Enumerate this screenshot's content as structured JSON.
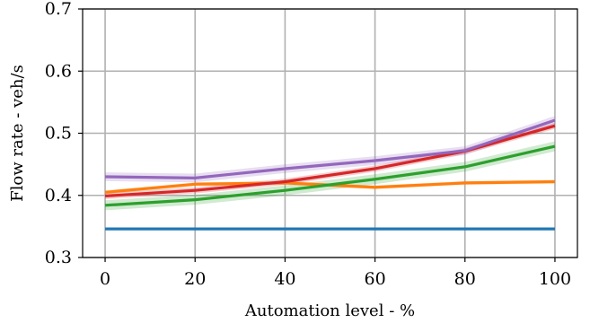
{
  "chart_data": {
    "type": "line",
    "xlabel": "Automation level - %",
    "ylabel": "Flow rate - veh/s",
    "xlim": [
      -5,
      105
    ],
    "ylim": [
      0.3,
      0.7
    ],
    "xticks": [
      0,
      20,
      40,
      60,
      80,
      100
    ],
    "yticks": [
      0.3,
      0.4,
      0.5,
      0.6,
      0.7
    ],
    "xtick_labels": [
      "0",
      "20",
      "40",
      "60",
      "80",
      "100"
    ],
    "ytick_labels": [
      "0.3",
      "0.4",
      "0.5",
      "0.6",
      "0.7"
    ],
    "grid": true,
    "x": [
      0,
      20,
      40,
      60,
      80,
      100
    ],
    "series": [
      {
        "color": "#1f77b4",
        "values": [
          0.346,
          0.346,
          0.346,
          0.346,
          0.346,
          0.346
        ],
        "band": 0.0
      },
      {
        "color": "#ff7f0e",
        "values": [
          0.405,
          0.418,
          0.42,
          0.413,
          0.42,
          0.422
        ],
        "band": 0.003
      },
      {
        "color": "#2ca02c",
        "values": [
          0.384,
          0.393,
          0.408,
          0.426,
          0.446,
          0.479
        ],
        "band": 0.008
      },
      {
        "color": "#d62728",
        "values": [
          0.399,
          0.408,
          0.422,
          0.443,
          0.471,
          0.512
        ],
        "band": 0.005
      },
      {
        "color": "#9467bd",
        "values": [
          0.43,
          0.428,
          0.443,
          0.456,
          0.472,
          0.521
        ],
        "band": 0.007
      }
    ]
  }
}
